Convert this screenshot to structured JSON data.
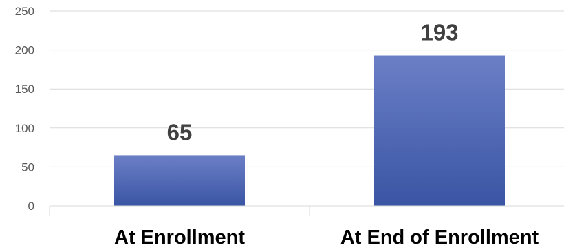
{
  "chart_data": {
    "type": "bar",
    "title": "",
    "xlabel": "",
    "ylabel": "",
    "categories": [
      "At Enrollment",
      "At End of Enrollment"
    ],
    "values": [
      65,
      193
    ],
    "data_labels": [
      "65",
      "193"
    ],
    "ylim": [
      0,
      250
    ],
    "yticks": [
      0,
      50,
      100,
      150,
      200,
      250
    ],
    "ytick_labels": [
      "0",
      "50",
      "100",
      "150",
      "200",
      "250"
    ],
    "grid": true,
    "legend": "none",
    "colors": {
      "bar_top": "#6b7fc6",
      "bar_bottom": "#3a55a4",
      "gridline": "#d9d9d9",
      "data_label": "#404040",
      "tick_label": "#595959",
      "category_label": "#000000"
    }
  }
}
